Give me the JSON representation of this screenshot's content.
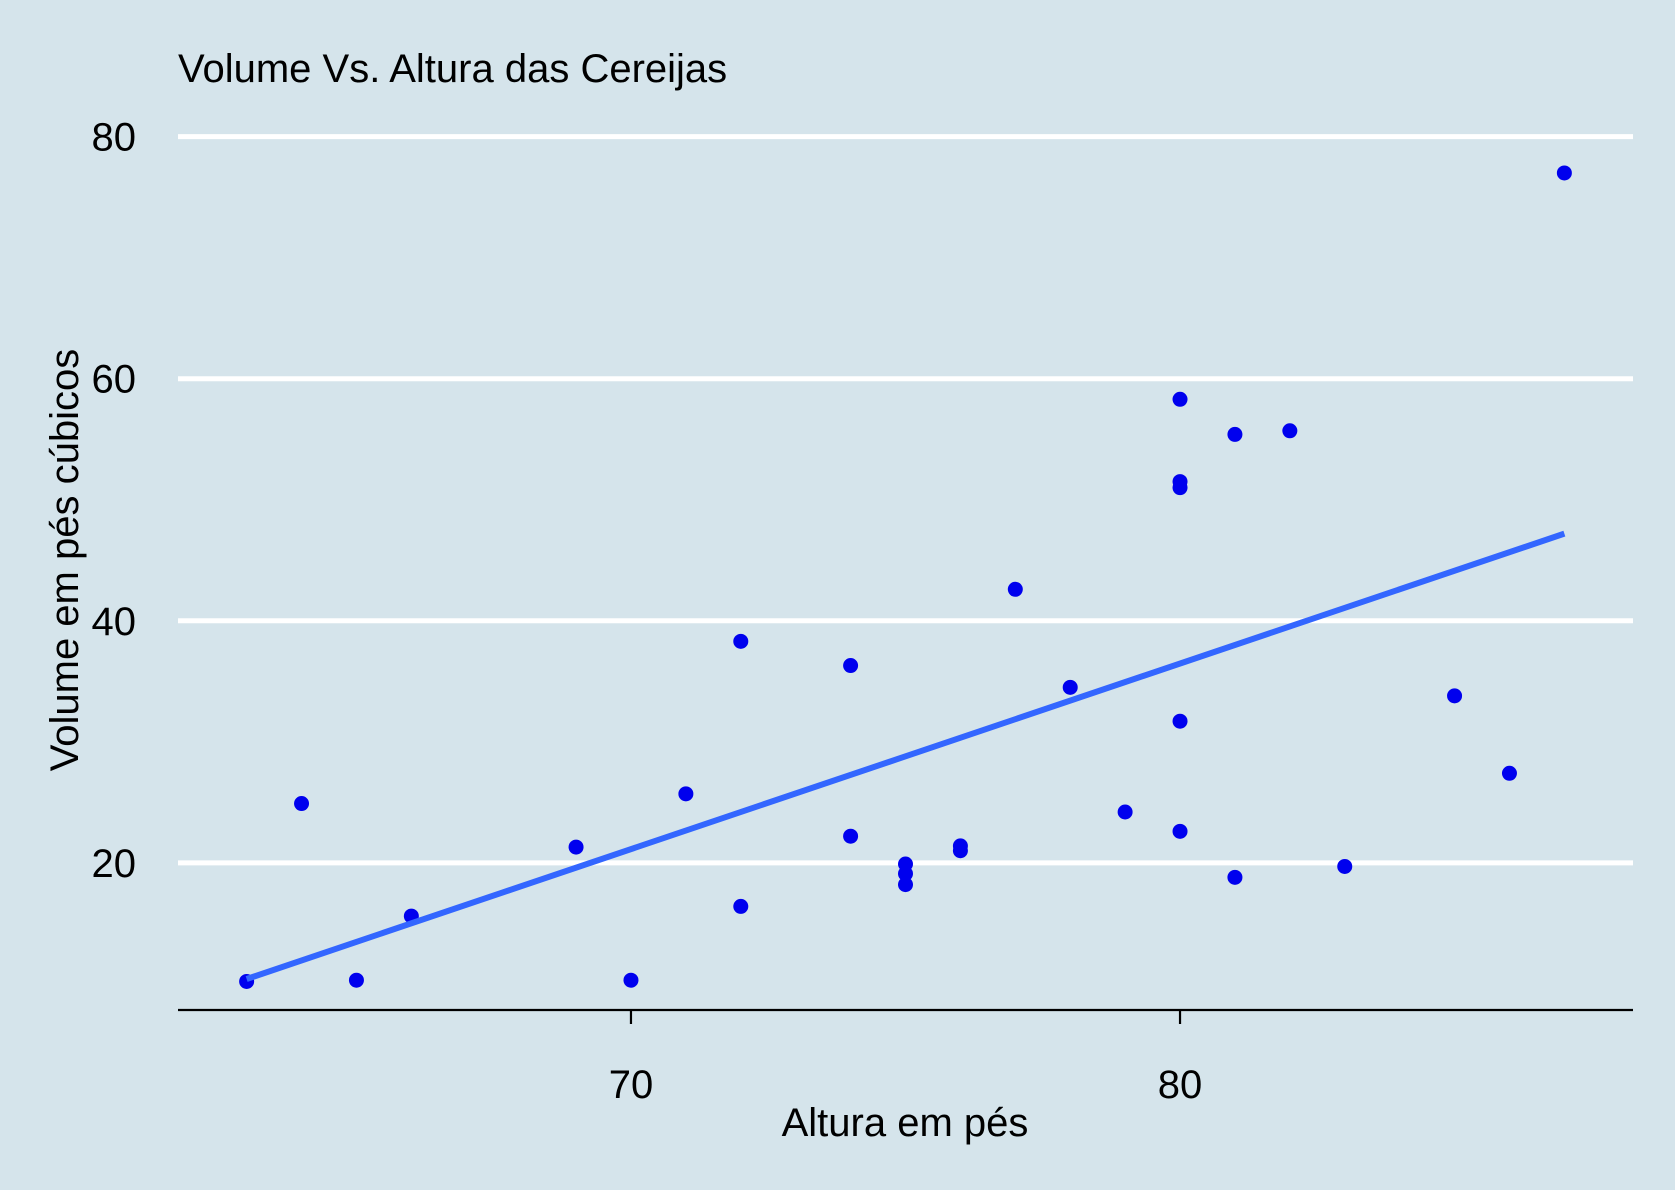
{
  "chart_data": {
    "type": "scatter",
    "title": "Volume Vs. Altura das Cereijas",
    "xlabel": "Altura em pés",
    "ylabel": "Volume em pés cúbicos",
    "xlim": [
      61.75,
      88.25
    ],
    "ylim": [
      7.84,
      83.36
    ],
    "x_ticks": [
      70,
      80
    ],
    "y_ticks": [
      20,
      40,
      60,
      80
    ],
    "grid": {
      "horizontal_major": true,
      "vertical": false
    },
    "colors": {
      "background": "#d5e4eb",
      "points": "#0000ee",
      "trend_line": "#3366ff",
      "grid": "#ffffff",
      "axis": "#000000"
    },
    "points": [
      {
        "x": 63,
        "y": 10.2
      },
      {
        "x": 64,
        "y": 24.9
      },
      {
        "x": 65,
        "y": 10.3
      },
      {
        "x": 66,
        "y": 15.6
      },
      {
        "x": 69,
        "y": 21.3
      },
      {
        "x": 70,
        "y": 10.3
      },
      {
        "x": 71,
        "y": 25.7
      },
      {
        "x": 72,
        "y": 16.4
      },
      {
        "x": 72,
        "y": 38.3
      },
      {
        "x": 74,
        "y": 22.2
      },
      {
        "x": 74,
        "y": 36.3
      },
      {
        "x": 75,
        "y": 18.2
      },
      {
        "x": 75,
        "y": 19.1
      },
      {
        "x": 75,
        "y": 19.9
      },
      {
        "x": 76,
        "y": 21.0
      },
      {
        "x": 76,
        "y": 21.4
      },
      {
        "x": 77,
        "y": 42.6
      },
      {
        "x": 78,
        "y": 34.5
      },
      {
        "x": 79,
        "y": 24.2
      },
      {
        "x": 80,
        "y": 22.6
      },
      {
        "x": 80,
        "y": 31.7
      },
      {
        "x": 80,
        "y": 51.0
      },
      {
        "x": 80,
        "y": 51.5
      },
      {
        "x": 80,
        "y": 58.3
      },
      {
        "x": 81,
        "y": 18.8
      },
      {
        "x": 81,
        "y": 55.4
      },
      {
        "x": 82,
        "y": 55.7
      },
      {
        "x": 83,
        "y": 19.7
      },
      {
        "x": 85,
        "y": 33.8
      },
      {
        "x": 86,
        "y": 27.4
      },
      {
        "x": 87,
        "y": 77.0
      }
    ],
    "trend_line": {
      "method": "lm",
      "x": [
        63,
        87
      ],
      "y": [
        10.4,
        47.2
      ]
    }
  }
}
